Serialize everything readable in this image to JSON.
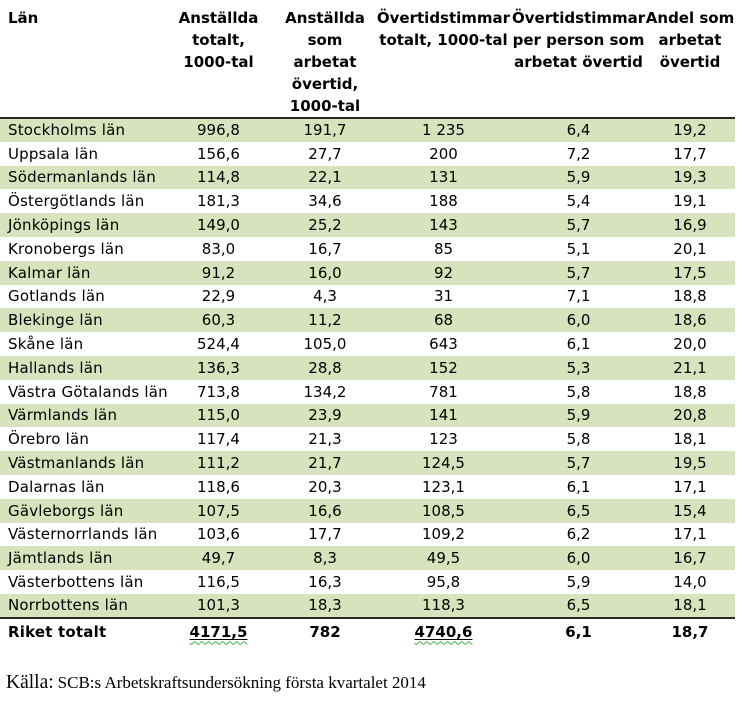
{
  "table": {
    "columns": [
      {
        "id": "lan",
        "label": "Län"
      },
      {
        "id": "anstallda_totalt",
        "label": "Anställda\ntotalt,\n1000-tal"
      },
      {
        "id": "anstallda_overtid",
        "label": "Anställda\nsom arbetat\növertid,\n1000-tal"
      },
      {
        "id": "overtidstimmar_totalt",
        "label": "Övertidstimmar\ntotalt, 1000-tal"
      },
      {
        "id": "overtidstimmar_per_person",
        "label": "Övertidstimmar\nper person som\narbetat övertid"
      },
      {
        "id": "andel_overtid",
        "label": "Andel som\narbetat\növertid"
      }
    ],
    "rows": [
      {
        "cells": [
          "Stockholms län",
          "996,8",
          "191,7",
          "1 235",
          "6,4",
          "19,2"
        ],
        "shaded": true
      },
      {
        "cells": [
          "Uppsala län",
          "156,6",
          "27,7",
          "200",
          "7,2",
          "17,7"
        ],
        "shaded": false
      },
      {
        "cells": [
          "Södermanlands län",
          "114,8",
          "22,1",
          "131",
          "5,9",
          "19,3"
        ],
        "shaded": true
      },
      {
        "cells": [
          "Östergötlands län",
          "181,3",
          "34,6",
          "188",
          "5,4",
          "19,1"
        ],
        "shaded": false
      },
      {
        "cells": [
          "Jönköpings län",
          "149,0",
          "25,2",
          "143",
          "5,7",
          "16,9"
        ],
        "shaded": true
      },
      {
        "cells": [
          "Kronobergs län",
          "83,0",
          "16,7",
          "85",
          "5,1",
          "20,1"
        ],
        "shaded": false
      },
      {
        "cells": [
          "Kalmar län",
          "91,2",
          "16,0",
          "92",
          "5,7",
          "17,5"
        ],
        "shaded": true
      },
      {
        "cells": [
          "Gotlands län",
          "22,9",
          "4,3",
          "31",
          "7,1",
          "18,8"
        ],
        "shaded": false
      },
      {
        "cells": [
          "Blekinge län",
          "60,3",
          "11,2",
          "68",
          "6,0",
          "18,6"
        ],
        "shaded": true
      },
      {
        "cells": [
          "Skåne län",
          "524,4",
          "105,0",
          "643",
          "6,1",
          "20,0"
        ],
        "shaded": false
      },
      {
        "cells": [
          "Hallands län",
          "136,3",
          "28,8",
          "152",
          "5,3",
          "21,1"
        ],
        "shaded": true
      },
      {
        "cells": [
          "Västra Götalands län",
          "713,8",
          "134,2",
          "781",
          "5,8",
          "18,8"
        ],
        "shaded": false
      },
      {
        "cells": [
          "Värmlands län",
          "115,0",
          "23,9",
          "141",
          "5,9",
          "20,8"
        ],
        "shaded": true
      },
      {
        "cells": [
          "Örebro län",
          "117,4",
          "21,3",
          "123",
          "5,8",
          "18,1"
        ],
        "shaded": false
      },
      {
        "cells": [
          "Västmanlands län",
          "111,2",
          "21,7",
          "124,5",
          "5,7",
          "19,5"
        ],
        "shaded": true
      },
      {
        "cells": [
          "Dalarnas län",
          "118,6",
          "20,3",
          "123,1",
          "6,1",
          "17,1"
        ],
        "shaded": false
      },
      {
        "cells": [
          "Gävleborgs län",
          "107,5",
          "16,6",
          "108,5",
          "6,5",
          "15,4"
        ],
        "shaded": true
      },
      {
        "cells": [
          "Västernorrlands län",
          "103,6",
          "17,7",
          "109,2",
          "6,2",
          "17,1"
        ],
        "shaded": false
      },
      {
        "cells": [
          "Jämtlands län",
          "49,7",
          "8,3",
          "49,5",
          "6,0",
          "16,7"
        ],
        "shaded": true
      },
      {
        "cells": [
          "Västerbottens län",
          "116,5",
          "16,3",
          "95,8",
          "5,9",
          "14,0"
        ],
        "shaded": false
      },
      {
        "cells": [
          "Norrbottens län",
          "101,3",
          "18,3",
          "118,3",
          "6,5",
          "18,1"
        ],
        "shaded": true
      },
      {
        "cells": [
          "Riket totalt",
          "4171,5",
          "782",
          "4740,6",
          "6,1",
          "18,7"
        ],
        "shaded": false,
        "total": true,
        "underlined_cells": [
          1,
          3
        ]
      }
    ]
  },
  "footer": {
    "source_label": "Källa:",
    "source_text": "SCB:s Arbetskraftsundersökning första kvartalet 2014"
  },
  "colors": {
    "band_green": "#d6e3bc",
    "rule_dark": "#2b2b2b",
    "squiggle_green": "#3fae49"
  }
}
